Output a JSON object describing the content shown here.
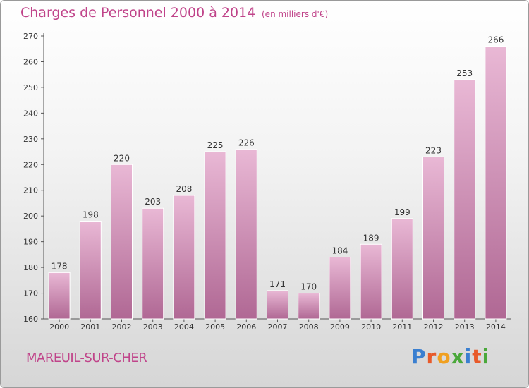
{
  "header": {
    "title": "Charges de Personnel 2000 à 2014",
    "subtitle": "(en milliers d'€)"
  },
  "footer": {
    "commune": "MAREUIL-SUR-CHER",
    "logo": "Proxiti"
  },
  "colors": {
    "title": "#c0448a",
    "bar_light": "#e7b3d2",
    "bar_dark": "#b46a95",
    "logo_letters": [
      "#3a7fd0",
      "#e85a2a",
      "#f0a020",
      "#4aa83a",
      "#3a7fd0",
      "#e85a2a",
      "#4aa83a"
    ]
  },
  "chart_data": {
    "type": "bar",
    "title": "Charges de Personnel 2000 à 2014",
    "subtitle": "(en milliers d'€)",
    "categories": [
      "2000",
      "2001",
      "2002",
      "2003",
      "2004",
      "2005",
      "2006",
      "2007",
      "2008",
      "2009",
      "2010",
      "2011",
      "2012",
      "2013",
      "2014"
    ],
    "values": [
      178,
      198,
      220,
      203,
      208,
      225,
      226,
      171,
      170,
      184,
      189,
      199,
      223,
      253,
      266
    ],
    "ylim": [
      160,
      270
    ],
    "yticks": [
      160,
      170,
      180,
      190,
      200,
      210,
      220,
      230,
      240,
      250,
      260,
      270
    ],
    "xlabel": "",
    "ylabel": "",
    "grid": false,
    "data_labels": true
  }
}
